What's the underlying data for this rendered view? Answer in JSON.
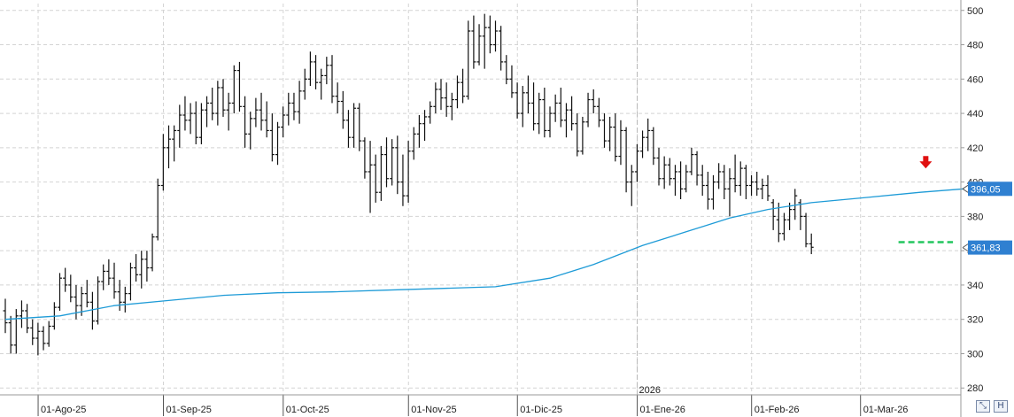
{
  "chart_data": {
    "type": "bar",
    "style": "ohlc",
    "ylim": [
      276,
      504
    ],
    "y_ticks": [
      280,
      300,
      320,
      340,
      360,
      380,
      400,
      420,
      440,
      460,
      480,
      500
    ],
    "x_labels": [
      {
        "label": "01-Ago-25",
        "index": 7
      },
      {
        "label": "01-Sep-25",
        "index": 30
      },
      {
        "label": "01-Oct-25",
        "index": 52
      },
      {
        "label": "01-Nov-25",
        "index": 75
      },
      {
        "label": "01-Dic-25",
        "index": 95
      },
      {
        "label": "01-Ene-26",
        "index": 117
      },
      {
        "label": "01-Feb-26",
        "index": 138
      },
      {
        "label": "01-Mar-26",
        "index": 158
      }
    ],
    "year_marker": {
      "label": "2026",
      "index": 117
    },
    "series": [
      {
        "type": "ohlc",
        "values": [
          [
            325,
            332,
            312,
            318
          ],
          [
            318,
            322,
            300,
            305
          ],
          [
            305,
            326,
            300,
            322
          ],
          [
            322,
            331,
            315,
            325
          ],
          [
            325,
            329,
            312,
            315
          ],
          [
            315,
            320,
            305,
            309
          ],
          [
            309,
            318,
            299,
            313
          ],
          [
            313,
            316,
            302,
            306
          ],
          [
            306,
            319,
            304,
            316
          ],
          [
            316,
            330,
            314,
            327
          ],
          [
            327,
            347,
            325,
            344
          ],
          [
            344,
            350,
            336,
            340
          ],
          [
            340,
            346,
            330,
            333
          ],
          [
            333,
            340,
            320,
            328
          ],
          [
            328,
            339,
            322,
            335
          ],
          [
            335,
            343,
            327,
            330
          ],
          [
            330,
            336,
            314,
            319
          ],
          [
            319,
            345,
            317,
            342
          ],
          [
            342,
            352,
            337,
            348
          ],
          [
            348,
            355,
            340,
            344
          ],
          [
            344,
            353,
            332,
            336
          ],
          [
            336,
            343,
            325,
            330
          ],
          [
            330,
            339,
            324,
            335
          ],
          [
            335,
            353,
            331,
            350
          ],
          [
            350,
            358,
            342,
            346
          ],
          [
            346,
            360,
            338,
            355
          ],
          [
            355,
            360,
            342,
            350
          ],
          [
            350,
            370,
            348,
            368
          ],
          [
            368,
            402,
            366,
            398
          ],
          [
            398,
            428,
            395,
            420
          ],
          [
            420,
            433,
            408,
            425
          ],
          [
            425,
            433,
            412,
            430
          ],
          [
            430,
            445,
            420,
            439
          ],
          [
            439,
            450,
            430,
            436
          ],
          [
            436,
            446,
            428,
            440
          ],
          [
            440,
            447,
            422,
            426
          ],
          [
            426,
            446,
            422,
            442
          ],
          [
            442,
            450,
            432,
            446
          ],
          [
            446,
            455,
            436,
            440
          ],
          [
            440,
            459,
            433,
            455
          ],
          [
            455,
            460,
            438,
            442
          ],
          [
            442,
            452,
            430,
            446
          ],
          [
            446,
            468,
            440,
            465
          ],
          [
            465,
            470,
            441,
            444
          ],
          [
            444,
            450,
            420,
            428
          ],
          [
            428,
            441,
            419,
            437
          ],
          [
            437,
            449,
            432,
            442
          ],
          [
            442,
            452,
            430,
            436
          ],
          [
            436,
            447,
            426,
            430
          ],
          [
            430,
            440,
            412,
            416
          ],
          [
            416,
            435,
            410,
            432
          ],
          [
            432,
            444,
            426,
            439
          ],
          [
            439,
            452,
            433,
            446
          ],
          [
            446,
            452,
            436,
            441
          ],
          [
            441,
            459,
            434,
            453
          ],
          [
            453,
            466,
            448,
            460
          ],
          [
            460,
            476,
            456,
            470
          ],
          [
            470,
            474,
            454,
            458
          ],
          [
            458,
            466,
            448,
            462
          ],
          [
            462,
            473,
            457,
            468
          ],
          [
            468,
            474,
            446,
            450
          ],
          [
            450,
            458,
            440,
            447
          ],
          [
            447,
            453,
            431,
            436
          ],
          [
            436,
            442,
            420,
            426
          ],
          [
            426,
            446,
            420,
            443
          ],
          [
            443,
            446,
            418,
            424
          ],
          [
            424,
            426,
            402,
            406
          ],
          [
            406,
            424,
            382,
            410
          ],
          [
            410,
            416,
            388,
            394
          ],
          [
            394,
            421,
            389,
            416
          ],
          [
            416,
            426,
            397,
            402
          ],
          [
            402,
            425,
            398,
            420
          ],
          [
            420,
            427,
            393,
            400
          ],
          [
            400,
            416,
            386,
            392
          ],
          [
            392,
            424,
            388,
            418
          ],
          [
            418,
            432,
            413,
            428
          ],
          [
            428,
            439,
            420,
            434
          ],
          [
            434,
            442,
            424,
            438
          ],
          [
            438,
            447,
            434,
            444
          ],
          [
            444,
            458,
            440,
            454
          ],
          [
            454,
            460,
            442,
            449
          ],
          [
            449,
            458,
            438,
            444
          ],
          [
            444,
            452,
            436,
            448
          ],
          [
            448,
            462,
            443,
            458
          ],
          [
            458,
            466,
            446,
            450
          ],
          [
            450,
            494,
            448,
            488
          ],
          [
            488,
            497,
            466,
            470
          ],
          [
            470,
            492,
            468,
            485
          ],
          [
            485,
            498,
            466,
            490
          ],
          [
            490,
            497,
            475,
            480
          ],
          [
            480,
            494,
            476,
            488
          ],
          [
            488,
            491,
            465,
            470
          ],
          [
            470,
            474,
            457,
            460
          ],
          [
            460,
            468,
            449,
            452
          ],
          [
            452,
            458,
            437,
            440
          ],
          [
            440,
            456,
            432,
            452
          ],
          [
            452,
            462,
            440,
            446
          ],
          [
            446,
            458,
            430,
            434
          ],
          [
            434,
            452,
            428,
            448
          ],
          [
            448,
            455,
            426,
            430
          ],
          [
            430,
            444,
            426,
            440
          ],
          [
            440,
            451,
            435,
            446
          ],
          [
            446,
            455,
            432,
            436
          ],
          [
            436,
            446,
            426,
            442
          ],
          [
            442,
            450,
            430,
            434
          ],
          [
            434,
            440,
            415,
            418
          ],
          [
            418,
            438,
            416,
            435
          ],
          [
            435,
            452,
            432,
            448
          ],
          [
            448,
            454,
            440,
            444
          ],
          [
            444,
            449,
            432,
            436
          ],
          [
            436,
            440,
            420,
            424
          ],
          [
            424,
            438,
            418,
            432
          ],
          [
            432,
            440,
            412,
            415
          ],
          [
            415,
            436,
            410,
            430
          ],
          [
            430,
            432,
            394,
            400
          ],
          [
            400,
            410,
            386,
            406
          ],
          [
            406,
            422,
            400,
            418
          ],
          [
            418,
            430,
            414,
            426
          ],
          [
            426,
            437,
            418,
            430
          ],
          [
            430,
            432,
            410,
            414
          ],
          [
            414,
            420,
            398,
            402
          ],
          [
            402,
            415,
            396,
            410
          ],
          [
            410,
            414,
            398,
            402
          ],
          [
            402,
            410,
            392,
            406
          ],
          [
            406,
            412,
            390,
            396
          ],
          [
            396,
            410,
            394,
            406
          ],
          [
            406,
            420,
            404,
            416
          ],
          [
            416,
            418,
            398,
            404
          ],
          [
            404,
            410,
            392,
            398
          ],
          [
            398,
            406,
            384,
            390
          ],
          [
            390,
            404,
            384,
            400
          ],
          [
            400,
            411,
            396,
            406
          ],
          [
            406,
            410,
            390,
            396
          ],
          [
            396,
            408,
            380,
            402
          ],
          [
            402,
            416,
            394,
            398
          ],
          [
            398,
            412,
            392,
            408
          ],
          [
            408,
            410,
            390,
            398
          ],
          [
            398,
            404,
            392,
            400
          ],
          [
            400,
            406,
            392,
            396
          ],
          [
            396,
            402,
            390,
            398
          ],
          [
            398,
            404,
            389,
            392
          ],
          [
            388,
            390,
            372,
            380
          ],
          [
            378,
            388,
            365,
            370
          ],
          [
            370,
            382,
            366,
            378
          ],
          [
            378,
            388,
            372,
            384
          ],
          [
            384,
            396,
            378,
            392
          ],
          [
            388,
            390,
            372,
            380
          ],
          [
            380,
            382,
            362,
            364
          ],
          [
            364,
            370,
            358,
            362
          ]
        ]
      },
      {
        "type": "line",
        "color": "#1e9bd7",
        "points": [
          [
            0,
            320
          ],
          [
            10,
            322
          ],
          [
            20,
            328
          ],
          [
            30,
            331
          ],
          [
            40,
            334
          ],
          [
            50,
            335.5
          ],
          [
            60,
            336
          ],
          [
            70,
            337
          ],
          [
            80,
            338
          ],
          [
            90,
            339
          ],
          [
            100,
            344
          ],
          [
            108,
            352
          ],
          [
            117,
            363
          ],
          [
            125,
            371
          ],
          [
            133,
            379
          ],
          [
            140,
            384
          ],
          [
            148,
            388
          ],
          [
            158,
            391
          ],
          [
            168,
            394
          ],
          [
            176,
            396.05
          ]
        ]
      }
    ],
    "price_labels": [
      {
        "value": 396.05,
        "label": "396,05",
        "color": "#2f80d1"
      },
      {
        "value": 361.83,
        "label": "361,83",
        "color": "#2f80d1"
      }
    ],
    "support_line": {
      "value": 365,
      "color": "#22c55e",
      "from_index": 164,
      "to_index": 174
    },
    "signal_arrow": {
      "color": "#e01010",
      "index": 169,
      "value": 411
    },
    "grid": true
  },
  "colors": {
    "bar": "#111111",
    "grid": "#d4d4d4",
    "axis": "#9a9a9a"
  },
  "toolbar": {
    "icons": [
      "zoom-icon",
      "bookmark-icon"
    ]
  }
}
